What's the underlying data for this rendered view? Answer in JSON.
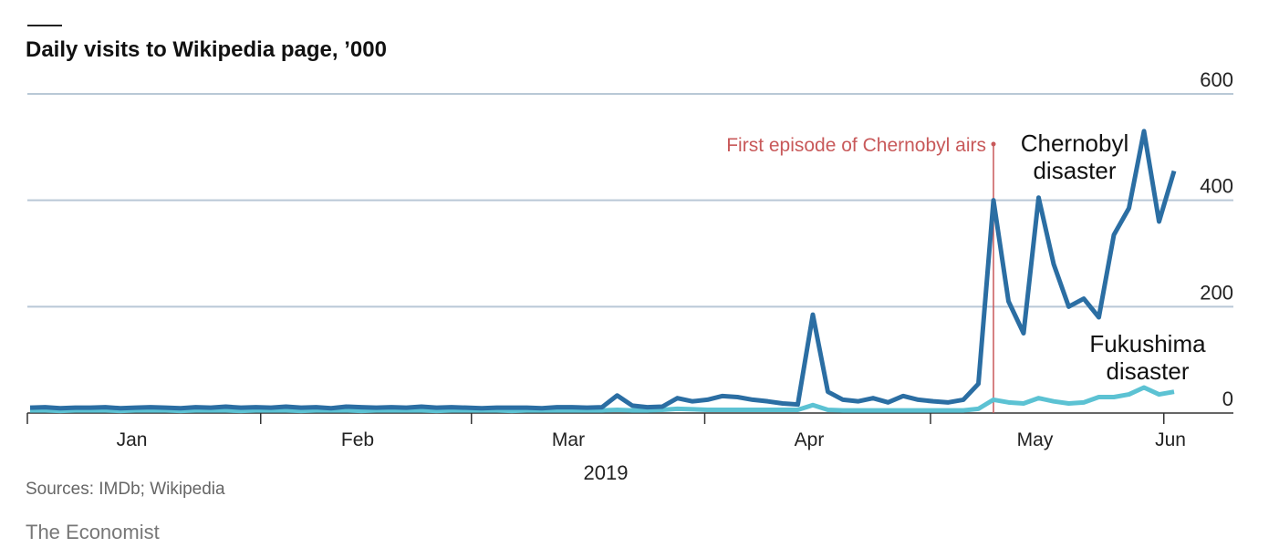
{
  "chart_data": {
    "type": "line",
    "title": "Daily visits to Wikipedia page, ’000",
    "x_label": "2019",
    "source": "Sources: IMDb; Wikipedia",
    "brand": "The Economist",
    "annotation": {
      "text": "First episode of Chernobyl airs",
      "index": 64,
      "color": "#c8595a"
    },
    "categories": [
      null,
      null,
      null,
      null,
      null,
      null,
      null,
      "Jan",
      null,
      null,
      null,
      null,
      null,
      null,
      null,
      null,
      null,
      null,
      null,
      null,
      null,
      null,
      "Feb",
      null,
      null,
      null,
      null,
      null,
      null,
      null,
      null,
      null,
      null,
      null,
      null,
      null,
      "Mar",
      null,
      null,
      null,
      null,
      null,
      null,
      null,
      null,
      null,
      null,
      null,
      null,
      null,
      null,
      null,
      "Apr",
      null,
      null,
      null,
      null,
      null,
      null,
      null,
      null,
      null,
      null,
      null,
      null,
      null,
      null,
      "May",
      null,
      null,
      null,
      null,
      null,
      null,
      null,
      null,
      "Jun"
    ],
    "series": [
      {
        "name": "Chernobyl disaster",
        "color": "#2b6ea3",
        "values": [
          10,
          11,
          9,
          10,
          10,
          11,
          9,
          10,
          11,
          10,
          9,
          11,
          10,
          12,
          10,
          11,
          10,
          12,
          10,
          11,
          9,
          12,
          11,
          10,
          11,
          10,
          12,
          10,
          11,
          10,
          9,
          10,
          10,
          10,
          9,
          11,
          11,
          10,
          11,
          33,
          14,
          11,
          12,
          28,
          22,
          25,
          32,
          30,
          25,
          22,
          18,
          16,
          185,
          40,
          25,
          22,
          28,
          20,
          32,
          25,
          22,
          20,
          25,
          55,
          400,
          210,
          150,
          405,
          280,
          200,
          215,
          180,
          335,
          385,
          530,
          360,
          455
        ]
      },
      {
        "name": "Fukushima disaster",
        "color": "#5cc2d3",
        "values": [
          5,
          5,
          4,
          5,
          5,
          5,
          4,
          5,
          5,
          5,
          4,
          5,
          5,
          5,
          4,
          5,
          5,
          5,
          4,
          5,
          5,
          5,
          4,
          5,
          5,
          5,
          5,
          4,
          5,
          5,
          5,
          5,
          4,
          5,
          5,
          5,
          5,
          5,
          5,
          6,
          5,
          5,
          6,
          8,
          7,
          6,
          6,
          6,
          6,
          6,
          6,
          6,
          15,
          6,
          5,
          5,
          5,
          5,
          5,
          5,
          5,
          5,
          5,
          8,
          25,
          20,
          18,
          28,
          22,
          18,
          20,
          30,
          30,
          35,
          48,
          35,
          40
        ]
      }
    ],
    "ylim": [
      0,
      600
    ],
    "yticks": [
      0,
      200,
      400,
      600
    ],
    "grid": true
  }
}
